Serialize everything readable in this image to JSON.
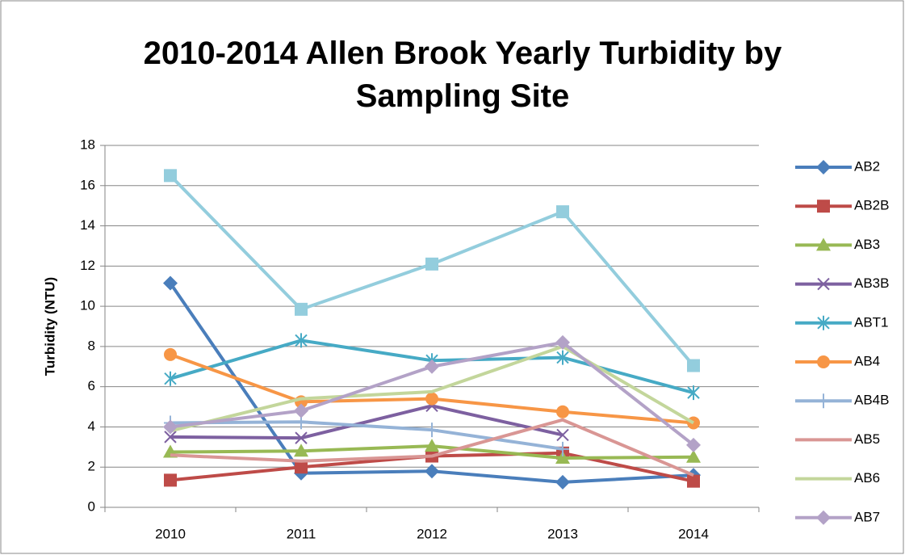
{
  "chart_data": {
    "type": "line",
    "title": "2010-2014 Allen Brook Yearly Turbidity by Sampling Site",
    "y_label": "Turbidity (NTU)",
    "categories": [
      "2010",
      "2011",
      "2012",
      "2013",
      "2014"
    ],
    "ylim": [
      0,
      18
    ],
    "yticks": [
      0,
      2,
      4,
      6,
      8,
      10,
      12,
      14,
      16,
      18
    ],
    "grid": true,
    "legend": "right",
    "series": [
      {
        "name": "AB2",
        "color": "#4a7ebb",
        "marker": "diamond",
        "values": [
          11.15,
          1.7,
          1.8,
          1.25,
          1.6
        ]
      },
      {
        "name": "AB2B",
        "color": "#be4b48",
        "marker": "square",
        "values": [
          1.35,
          2.0,
          2.55,
          2.7,
          1.3
        ]
      },
      {
        "name": "AB3",
        "color": "#98b954",
        "marker": "triangle",
        "values": [
          2.75,
          2.8,
          3.05,
          2.45,
          2.5
        ]
      },
      {
        "name": "AB3B",
        "color": "#7d60a0",
        "marker": "x",
        "values": [
          3.5,
          3.45,
          5.05,
          3.6,
          null
        ]
      },
      {
        "name": "ABT1",
        "color": "#46aac5",
        "marker": "asterisk",
        "values": [
          6.4,
          8.3,
          7.3,
          7.45,
          5.7
        ]
      },
      {
        "name": "AB4",
        "color": "#f79646",
        "marker": "circle",
        "values": [
          7.6,
          5.25,
          5.4,
          4.75,
          4.2
        ]
      },
      {
        "name": "AB4B",
        "color": "#95b3d7",
        "marker": "plus",
        "values": [
          4.2,
          4.25,
          3.85,
          2.9,
          null
        ]
      },
      {
        "name": "AB5",
        "color": "#d99694",
        "marker": "none",
        "values": [
          2.6,
          2.3,
          2.55,
          4.35,
          1.6
        ]
      },
      {
        "name": "AB6",
        "color": "#c3d69b",
        "marker": "none",
        "values": [
          3.8,
          5.4,
          5.75,
          8.0,
          4.2
        ]
      },
      {
        "name": "AB7",
        "color": "#b3a2c7",
        "marker": "diamond",
        "values": [
          4.0,
          4.8,
          7.0,
          8.2,
          3.1
        ]
      },
      {
        "color": "#93cddd",
        "marker": "square",
        "values": [
          16.5,
          9.85,
          12.1,
          14.7,
          7.05
        ]
      }
    ]
  }
}
